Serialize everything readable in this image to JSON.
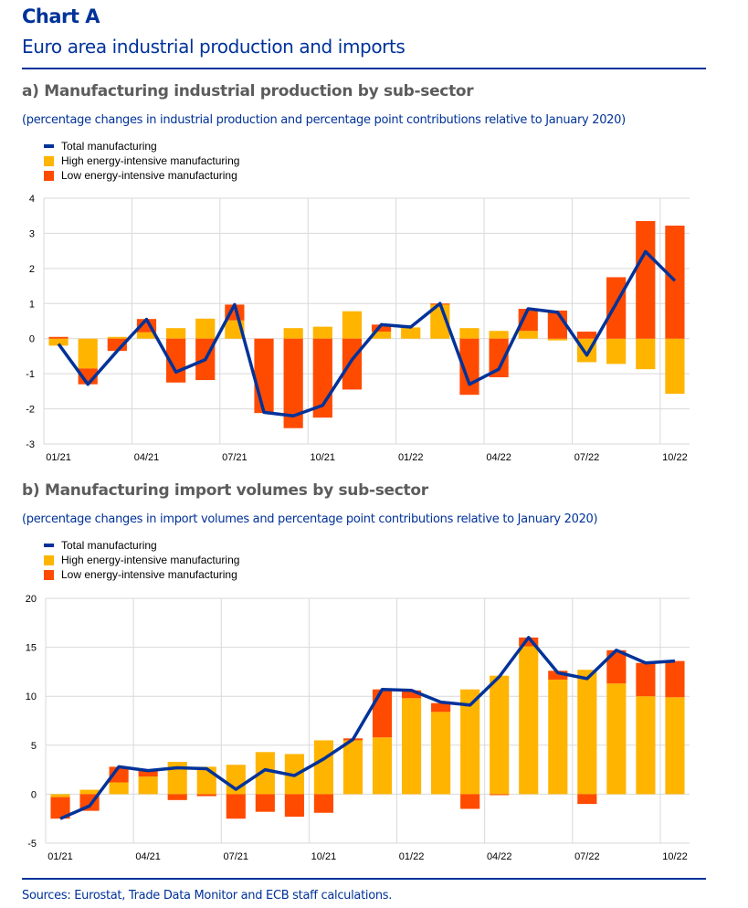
{
  "header": {
    "chart_label": "Chart A",
    "title": "Euro area industrial production and imports"
  },
  "colors": {
    "total": "#003299",
    "high": "#FFB400",
    "low": "#FF4B00",
    "grid": "#d9d9d9"
  },
  "legend": {
    "total": "Total manufacturing",
    "high": "High energy-intensive manufacturing",
    "low": "Low energy-intensive manufacturing"
  },
  "footer": {
    "sources": "Sources: Eurostat, Trade Data Monitor and ECB staff calculations."
  },
  "chart_data": [
    {
      "type": "bar",
      "stacked": true,
      "title": "a) Manufacturing industrial production by sub-sector",
      "subtitle": "(percentage changes in industrial production and percentage point contributions relative to January 2020)",
      "categories": [
        "01/21",
        "02/21",
        "03/21",
        "04/21",
        "05/21",
        "06/21",
        "07/21",
        "08/21",
        "09/21",
        "10/21",
        "11/21",
        "12/21",
        "01/22",
        "02/22",
        "03/22",
        "04/22",
        "05/22",
        "06/22",
        "07/22",
        "08/22",
        "09/22",
        "10/22"
      ],
      "tick_labels": [
        "01/21",
        "04/21",
        "07/21",
        "10/21",
        "01/22",
        "04/22",
        "07/22",
        "10/22"
      ],
      "ylim": [
        -3,
        4
      ],
      "yticks": [
        -3,
        -2,
        -1,
        0,
        1,
        2,
        3,
        4
      ],
      "grid": true,
      "legend_position": "top-left",
      "series": [
        {
          "name": "High energy-intensive manufacturing",
          "type": "bar",
          "values": [
            -0.2,
            -0.85,
            0.05,
            0.18,
            0.3,
            0.57,
            0.52,
            0,
            0.3,
            0.34,
            0.78,
            0.2,
            0.32,
            0.97,
            0.3,
            0.22,
            0.22,
            -0.05,
            -0.67,
            -0.72,
            -0.87,
            -1.57
          ]
        },
        {
          "name": "Low energy-intensive manufacturing",
          "type": "bar",
          "values": [
            0.05,
            -0.45,
            -0.35,
            0.38,
            -1.25,
            -1.18,
            0.45,
            -2.12,
            -2.55,
            -2.25,
            -1.45,
            0.2,
            0,
            0.03,
            -1.6,
            -1.1,
            0.63,
            0.8,
            0.2,
            1.75,
            3.35,
            3.22
          ]
        },
        {
          "name": "Total manufacturing",
          "type": "line",
          "values": [
            -0.15,
            -1.3,
            -0.35,
            0.55,
            -0.95,
            -0.6,
            0.97,
            -2.1,
            -2.2,
            -1.9,
            -0.6,
            0.4,
            0.33,
            1.0,
            -1.3,
            -0.87,
            0.85,
            0.75,
            -0.47,
            1.0,
            2.48,
            1.65
          ]
        }
      ]
    },
    {
      "type": "bar",
      "stacked": true,
      "title": "b) Manufacturing import volumes by sub-sector",
      "subtitle": "(percentage changes in import volumes and percentage point contributions relative to January 2020)",
      "categories": [
        "01/21",
        "02/21",
        "03/21",
        "04/21",
        "05/21",
        "06/21",
        "07/21",
        "08/21",
        "09/21",
        "10/21",
        "11/21",
        "12/21",
        "01/22",
        "02/22",
        "03/22",
        "04/22",
        "05/22",
        "06/22",
        "07/22",
        "08/22",
        "09/22",
        "10/22"
      ],
      "tick_labels": [
        "01/21",
        "04/21",
        "07/21",
        "10/21",
        "01/22",
        "04/22",
        "07/22",
        "10/22"
      ],
      "ylim": [
        -5,
        20
      ],
      "yticks": [
        -5,
        0,
        5,
        10,
        15,
        20
      ],
      "grid": true,
      "legend_position": "top-left",
      "series": [
        {
          "name": "High energy-intensive manufacturing",
          "type": "bar",
          "values": [
            -0.3,
            0.45,
            1.2,
            1.8,
            3.3,
            2.8,
            3.0,
            4.3,
            4.1,
            5.5,
            5.5,
            5.8,
            9.8,
            8.4,
            10.7,
            12.1,
            15.1,
            11.7,
            12.7,
            11.3,
            10.0,
            9.9
          ]
        },
        {
          "name": "Low energy-intensive manufacturing",
          "type": "bar",
          "values": [
            -2.2,
            -1.7,
            1.6,
            0.6,
            -0.6,
            -0.2,
            -2.5,
            -1.8,
            -2.3,
            -1.9,
            0.2,
            4.9,
            0.8,
            0.9,
            -1.5,
            -0.1,
            0.9,
            0.9,
            -1.0,
            3.4,
            3.4,
            3.7
          ]
        },
        {
          "name": "Total manufacturing",
          "type": "line",
          "values": [
            -2.5,
            -1.2,
            2.8,
            2.4,
            2.7,
            2.6,
            0.5,
            2.5,
            1.9,
            3.6,
            5.6,
            10.7,
            10.6,
            9.4,
            9.1,
            12.0,
            16.0,
            12.4,
            11.8,
            14.7,
            13.4,
            13.6
          ]
        }
      ]
    }
  ]
}
